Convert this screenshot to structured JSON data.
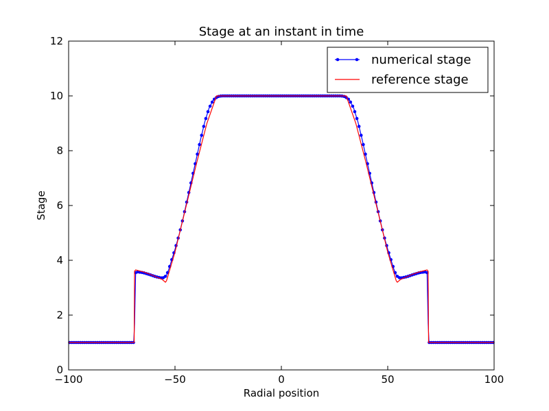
{
  "chart_data": {
    "type": "line",
    "title": "Stage at an instant in time",
    "xlabel": "Radial position",
    "ylabel": "Stage",
    "xlim": [
      -100,
      100
    ],
    "ylim": [
      0,
      12
    ],
    "xticks": [
      -100,
      -50,
      0,
      50,
      100
    ],
    "yticks": [
      0,
      2,
      4,
      6,
      8,
      10,
      12
    ],
    "xtick_labels": [
      "−100",
      "−50",
      "0",
      "50",
      "100"
    ],
    "ytick_labels": [
      "0",
      "2",
      "4",
      "6",
      "8",
      "10",
      "12"
    ],
    "grid": false,
    "legend_position": "top-right",
    "series": [
      {
        "name": "numerical stage",
        "color": "#0000ff",
        "style": "line-with-dot-markers",
        "x": [
          -100,
          -69.4,
          -69.0,
          -68.5,
          -68.0,
          -65,
          -62,
          -59,
          -56,
          -55,
          -54,
          -53,
          -52,
          -50,
          -48,
          -46,
          -44,
          -42,
          -40,
          -38,
          -36,
          -34,
          -32,
          -30,
          -29,
          -28,
          -27,
          -26,
          -25,
          0,
          25,
          26,
          27,
          28,
          29,
          30,
          32,
          34,
          36,
          38,
          40,
          42,
          44,
          46,
          48,
          50,
          52,
          53,
          54,
          55,
          56,
          59,
          62,
          65,
          68.0,
          68.5,
          69.0,
          69.4,
          100
        ],
        "y": [
          1.0,
          1.0,
          1.7,
          3.55,
          3.58,
          3.55,
          3.48,
          3.4,
          3.35,
          3.38,
          3.45,
          3.65,
          3.9,
          4.4,
          4.95,
          5.6,
          6.3,
          7.0,
          7.7,
          8.4,
          9.05,
          9.55,
          9.85,
          9.97,
          9.99,
          10.0,
          10.0,
          10.0,
          10.0,
          10.0,
          10.0,
          10.0,
          10.0,
          10.0,
          9.99,
          9.97,
          9.85,
          9.55,
          9.05,
          8.4,
          7.7,
          7.0,
          6.3,
          5.6,
          4.95,
          4.4,
          3.9,
          3.65,
          3.45,
          3.38,
          3.35,
          3.4,
          3.48,
          3.55,
          3.58,
          3.55,
          1.7,
          1.0,
          1.0
        ]
      },
      {
        "name": "reference stage",
        "color": "#ff0000",
        "style": "line",
        "x": [
          -100,
          -69.2,
          -69.0,
          -68.5,
          -65,
          -62,
          -59,
          -56,
          -54.5,
          -54,
          -50,
          -45,
          -40,
          -35,
          -30.5,
          -30,
          30,
          30.5,
          35,
          40,
          45,
          50,
          54,
          54.5,
          56,
          59,
          62,
          65,
          68.5,
          69.0,
          69.2,
          100
        ],
        "y": [
          1.0,
          1.0,
          3.6,
          3.65,
          3.58,
          3.5,
          3.4,
          3.3,
          3.2,
          3.25,
          4.3,
          5.9,
          7.5,
          9.0,
          10.0,
          10.0,
          10.0,
          10.0,
          9.0,
          7.5,
          5.9,
          4.3,
          3.25,
          3.2,
          3.3,
          3.4,
          3.5,
          3.58,
          3.65,
          3.6,
          1.0,
          1.0
        ]
      }
    ]
  }
}
